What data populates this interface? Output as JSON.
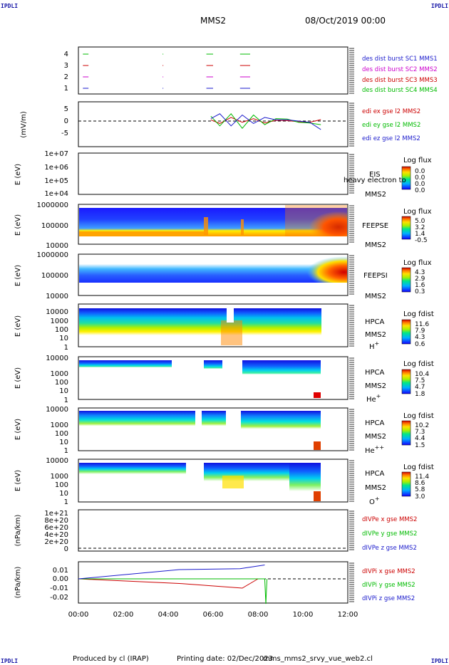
{
  "header": {
    "corner_labels": [
      "IPDLI",
      "IPDLI",
      "IPDLI",
      "IPDLI"
    ],
    "spacecraft": "MMS2",
    "datetime": "08/Oct/2019 00:00"
  },
  "footer": {
    "produced_by": "Produced by cl (IRAP)",
    "printing_date": "Printing date: 02/Dec/2023",
    "script_name": "mms_mms2_srvy_vue_web2.cl"
  },
  "time_axis": {
    "range_hours": [
      0,
      12
    ],
    "tick_labels": [
      "00:00",
      "02:00",
      "04:00",
      "06:00",
      "08:00",
      "10:00",
      "12:00"
    ]
  },
  "panels": {
    "burst": {
      "yticks": [
        "4",
        "3",
        "2",
        "1"
      ],
      "legend": [
        {
          "text": "des dist burst SC1 MMS1",
          "color": "#1a1acc"
        },
        {
          "text": "des dist burst SC2 MMS2",
          "color": "#cc00cc"
        },
        {
          "text": "des dist burst SC3 MMS3",
          "color": "#cc0000"
        },
        {
          "text": "des dist burst SC4 MMS4",
          "color": "#00bb00"
        }
      ]
    },
    "edi": {
      "ylabel": "(mV/m)",
      "yticks": [
        "5",
        "0",
        "-5"
      ],
      "legend": [
        {
          "text": "edi ex gse l2 MMS2",
          "color": "#cc0000"
        },
        {
          "text": "edi ey gse l2 MMS2",
          "color": "#00bb00"
        },
        {
          "text": "edi ez gse l2 MMS2",
          "color": "#1a1acc"
        }
      ]
    },
    "eis": {
      "ylabel": "E (eV)",
      "yticks": [
        "1e+07",
        "1e+06",
        "1e+05",
        "1e+04"
      ],
      "instrument": "EIS",
      "overlay": "heavy electron to",
      "sc": "MMS2",
      "cb_title": "Log flux",
      "cb_ticks": [
        "0.0",
        "0.0",
        "0.0",
        "0.0"
      ]
    },
    "feepse": {
      "ylabel": "E (eV)",
      "yticks": [
        "1000000",
        "100000",
        "10000"
      ],
      "instrument": "FEEPSE",
      "sc": "MMS2",
      "cb_title": "Log flux",
      "cb_ticks": [
        "5.0",
        "3.2",
        "1.4",
        "-0.5"
      ]
    },
    "feepsi": {
      "ylabel": "E (eV)",
      "yticks": [
        "1000000",
        "100000",
        "10000"
      ],
      "instrument": "FEEPSI",
      "sc": "MMS2",
      "cb_title": "Log flux",
      "cb_ticks": [
        "4.3",
        "2.9",
        "1.6",
        "0.3"
      ]
    },
    "hpca_h": {
      "ylabel": "E (eV)",
      "yticks": [
        "10000",
        "1000",
        "100",
        "10",
        "1"
      ],
      "instrument": "HPCA",
      "sc": "MMS2",
      "species": "H",
      "charge": "+",
      "cb_title": "Log fdist",
      "cb_ticks": [
        "11.6",
        "7.9",
        "4.3",
        "0.6"
      ]
    },
    "hpca_he1": {
      "ylabel": "E (eV)",
      "yticks": [
        "10000",
        "1000",
        "100",
        "10",
        "1"
      ],
      "instrument": "HPCA",
      "sc": "MMS2",
      "species": "He",
      "charge": "+",
      "cb_title": "Log fdist",
      "cb_ticks": [
        "10.4",
        "7.5",
        "4.7",
        "1.8"
      ]
    },
    "hpca_he2": {
      "ylabel": "E (eV)",
      "yticks": [
        "10000",
        "1000",
        "100",
        "10",
        "1"
      ],
      "instrument": "HPCA",
      "sc": "MMS2",
      "species": "He",
      "charge": "++",
      "cb_title": "Log fdist",
      "cb_ticks": [
        "10.2",
        "7.3",
        "4.4",
        "1.5"
      ]
    },
    "hpca_o": {
      "ylabel": "E (eV)",
      "yticks": [
        "10000",
        "1000",
        "100",
        "10",
        "1"
      ],
      "instrument": "HPCA",
      "sc": "MMS2",
      "species": "O",
      "charge": "+",
      "cb_title": "Log fdist",
      "cb_ticks": [
        "11.4",
        "8.6",
        "5.8",
        "3.0"
      ]
    },
    "divpe": {
      "ylabel": "(nPa/km)",
      "yticks": [
        "1e+21",
        "8e+20",
        "6e+20",
        "4e+20",
        "2e+20",
        "0"
      ],
      "legend": [
        {
          "text": "dIVPe x gse MMS2",
          "color": "#cc0000"
        },
        {
          "text": "dIVPe y gse MMS2",
          "color": "#00bb00"
        },
        {
          "text": "dIVPe z gse MMS2",
          "color": "#1a1acc"
        }
      ]
    },
    "divpi": {
      "ylabel": "(nPa/km)",
      "yticks": [
        "0.01",
        "0.00",
        "-0.01",
        "-0.02"
      ],
      "legend": [
        {
          "text": "dIVPi x gse MMS2",
          "color": "#cc0000"
        },
        {
          "text": "dIVPi y gse MMS2",
          "color": "#00bb00"
        },
        {
          "text": "dIVPi z gse MMS2",
          "color": "#1a1acc"
        }
      ]
    }
  },
  "chart_data": {
    "type": "line",
    "title": "MMS2",
    "xlabel": "",
    "xlim_hours": [
      0,
      12
    ],
    "burst_intervals": {
      "MMS1": [
        [
          0.2,
          0.45
        ],
        [
          3.75,
          3.78
        ],
        [
          5.7,
          6.0
        ],
        [
          7.2,
          7.65
        ]
      ],
      "MMS2": [
        [
          0.2,
          0.45
        ],
        [
          3.75,
          3.78
        ],
        [
          5.7,
          6.0
        ],
        [
          7.2,
          7.65
        ]
      ],
      "MMS3": [
        [
          0.2,
          0.45
        ],
        [
          3.75,
          3.78
        ],
        [
          5.7,
          6.0
        ],
        [
          7.2,
          7.65
        ]
      ],
      "MMS4": [
        [
          0.2,
          0.45
        ],
        [
          3.75,
          3.78
        ],
        [
          5.7,
          6.0
        ],
        [
          7.2,
          7.65
        ]
      ]
    },
    "edi_series": [
      {
        "name": "edi ex gse l2 MMS2",
        "color": "#cc0000",
        "x": [
          5.9,
          6.3,
          6.8,
          7.3,
          7.8,
          8.3,
          8.8,
          9.3,
          9.8,
          10.3,
          10.8
        ],
        "y": [
          0.5,
          -1.0,
          1.5,
          -0.5,
          1.0,
          -0.8,
          0.3,
          0.2,
          -0.3,
          -0.5,
          0.6
        ]
      },
      {
        "name": "edi ey gse l2 MMS2",
        "color": "#00bb00",
        "x": [
          5.9,
          6.3,
          6.8,
          7.3,
          7.8,
          8.3,
          8.8,
          9.3,
          9.8,
          10.3,
          10.8
        ],
        "y": [
          2.0,
          -2.0,
          3.0,
          -3.0,
          2.5,
          -1.5,
          1.0,
          0.8,
          -0.5,
          -0.8,
          -1.5
        ]
      },
      {
        "name": "edi ez gse l2 MMS2",
        "color": "#1a1acc",
        "x": [
          5.9,
          6.3,
          6.8,
          7.3,
          7.8,
          8.3,
          8.8,
          9.3,
          9.8,
          10.3,
          10.8
        ],
        "y": [
          1.0,
          3.0,
          -2.0,
          2.5,
          -1.0,
          1.5,
          0.5,
          0.5,
          0.0,
          -0.5,
          -3.5
        ]
      }
    ],
    "divpi_series": [
      {
        "name": "dIVPi x gse MMS2",
        "color": "#cc0000",
        "x": [
          0.0,
          4.5,
          7.3,
          8.0
        ],
        "y": [
          0.0,
          -0.005,
          -0.01,
          0.0
        ]
      },
      {
        "name": "dIVPi y gse MMS2",
        "color": "#00bb00",
        "x": [
          0.0,
          8.3,
          8.35,
          8.4
        ],
        "y": [
          0.0,
          0.0,
          -0.027,
          0.0
        ]
      },
      {
        "name": "dIVPi z gse MMS2",
        "color": "#1a1acc",
        "x": [
          0.0,
          4.5,
          7.2,
          8.3
        ],
        "y": [
          0.0,
          0.01,
          0.011,
          0.015
        ]
      }
    ]
  }
}
